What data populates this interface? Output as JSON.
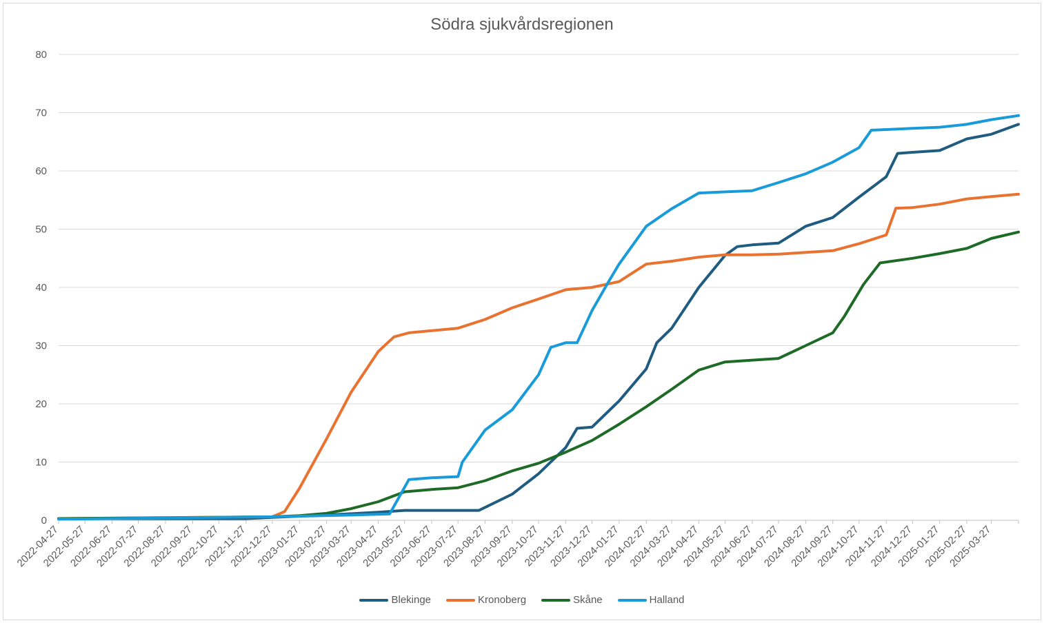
{
  "chart_data": {
    "type": "line",
    "title": "Södra sjukvårdsregionen",
    "xlabel": "",
    "ylabel": "",
    "ylim": [
      0,
      80
    ],
    "yticks": [
      0,
      10,
      20,
      30,
      40,
      50,
      60,
      70,
      80
    ],
    "grid": "horizontal",
    "legend_position": "bottom",
    "x_start": "2022-04-27",
    "x_end": "2025-04-27",
    "x_tick_labels": [
      "2022-04-27",
      "2022-05-27",
      "2022-06-27",
      "2022-07-27",
      "2022-08-27",
      "2022-09-27",
      "2022-10-27",
      "2022-11-27",
      "2022-12-27",
      "2023-01-27",
      "2023-02-27",
      "2023-03-27",
      "2023-04-27",
      "2023-05-27",
      "2023-06-27",
      "2023-07-27",
      "2023-08-27",
      "2023-09-27",
      "2023-10-27",
      "2023-11-27",
      "2023-12-27",
      "2024-01-27",
      "2024-02-27",
      "2024-03-27",
      "2024-04-27",
      "2024-05-27",
      "2024-06-27",
      "2024-07-27",
      "2024-08-27",
      "2024-09-27",
      "2024-10-27",
      "2024-11-27",
      "2024-12-27",
      "2025-01-27",
      "2025-02-27",
      "2025-03-27"
    ],
    "series": [
      {
        "name": "Blekinge",
        "color": "#1f5c80",
        "points": [
          [
            "2022-04-27",
            0.3
          ],
          [
            "2022-11-27",
            0.3
          ],
          [
            "2022-12-27",
            0.5
          ],
          [
            "2023-02-27",
            0.9
          ],
          [
            "2023-04-27",
            1.4
          ],
          [
            "2023-05-27",
            1.7
          ],
          [
            "2023-08-20",
            1.7
          ],
          [
            "2023-09-27",
            4.5
          ],
          [
            "2023-10-27",
            8
          ],
          [
            "2023-11-27",
            12.5
          ],
          [
            "2023-12-10",
            15.8
          ],
          [
            "2023-12-27",
            16
          ],
          [
            "2024-01-27",
            20.5
          ],
          [
            "2024-02-27",
            26
          ],
          [
            "2024-03-10",
            30.5
          ],
          [
            "2024-03-27",
            33
          ],
          [
            "2024-04-27",
            40
          ],
          [
            "2024-05-27",
            45.5
          ],
          [
            "2024-06-10",
            47
          ],
          [
            "2024-06-27",
            47.3
          ],
          [
            "2024-07-27",
            47.6
          ],
          [
            "2024-08-27",
            50.5
          ],
          [
            "2024-09-27",
            52
          ],
          [
            "2024-10-27",
            55.5
          ],
          [
            "2024-11-27",
            59
          ],
          [
            "2024-12-10",
            63
          ],
          [
            "2024-12-27",
            63.2
          ],
          [
            "2025-01-27",
            63.5
          ],
          [
            "2025-02-27",
            65.5
          ],
          [
            "2025-03-27",
            66.3
          ],
          [
            "2025-04-27",
            68
          ]
        ]
      },
      {
        "name": "Kronoberg",
        "color": "#e97231",
        "points": [
          [
            "2022-04-27",
            0.3
          ],
          [
            "2022-12-27",
            0.6
          ],
          [
            "2023-01-10",
            1.5
          ],
          [
            "2023-01-27",
            5.5
          ],
          [
            "2023-02-27",
            14
          ],
          [
            "2023-03-27",
            22
          ],
          [
            "2023-04-27",
            29
          ],
          [
            "2023-05-15",
            31.5
          ],
          [
            "2023-06-01",
            32.2
          ],
          [
            "2023-07-27",
            33
          ],
          [
            "2023-08-27",
            34.5
          ],
          [
            "2023-09-27",
            36.5
          ],
          [
            "2023-10-27",
            38
          ],
          [
            "2023-11-27",
            39.6
          ],
          [
            "2023-12-27",
            40
          ],
          [
            "2024-01-27",
            41
          ],
          [
            "2024-02-27",
            44
          ],
          [
            "2024-03-27",
            44.5
          ],
          [
            "2024-04-27",
            45.2
          ],
          [
            "2024-05-27",
            45.6
          ],
          [
            "2024-06-27",
            45.6
          ],
          [
            "2024-07-27",
            45.7
          ],
          [
            "2024-08-27",
            46
          ],
          [
            "2024-09-27",
            46.3
          ],
          [
            "2024-10-27",
            47.5
          ],
          [
            "2024-11-27",
            49
          ],
          [
            "2024-12-08",
            53.6
          ],
          [
            "2024-12-27",
            53.7
          ],
          [
            "2025-01-27",
            54.3
          ],
          [
            "2025-02-27",
            55.2
          ],
          [
            "2025-03-27",
            55.6
          ],
          [
            "2025-04-27",
            56
          ]
        ]
      },
      {
        "name": "Skåne",
        "color": "#1e6b27",
        "points": [
          [
            "2022-04-27",
            0.3
          ],
          [
            "2022-12-27",
            0.6
          ],
          [
            "2023-01-27",
            0.8
          ],
          [
            "2023-02-27",
            1.2
          ],
          [
            "2023-03-27",
            2
          ],
          [
            "2023-04-27",
            3.2
          ],
          [
            "2023-05-27",
            4.9
          ],
          [
            "2023-06-27",
            5.3
          ],
          [
            "2023-07-27",
            5.6
          ],
          [
            "2023-08-27",
            6.8
          ],
          [
            "2023-09-27",
            8.5
          ],
          [
            "2023-10-27",
            9.8
          ],
          [
            "2023-11-27",
            11.7
          ],
          [
            "2023-12-27",
            13.7
          ],
          [
            "2024-01-27",
            16.5
          ],
          [
            "2024-02-27",
            19.5
          ],
          [
            "2024-03-27",
            22.5
          ],
          [
            "2024-04-27",
            25.8
          ],
          [
            "2024-05-27",
            27.2
          ],
          [
            "2024-06-27",
            27.5
          ],
          [
            "2024-07-27",
            27.8
          ],
          [
            "2024-08-27",
            30
          ],
          [
            "2024-09-27",
            32.2
          ],
          [
            "2024-10-10",
            35
          ],
          [
            "2024-11-01",
            40.5
          ],
          [
            "2024-11-20",
            44.2
          ],
          [
            "2024-12-27",
            45
          ],
          [
            "2025-01-27",
            45.8
          ],
          [
            "2025-02-27",
            46.7
          ],
          [
            "2025-03-27",
            48.4
          ],
          [
            "2025-04-27",
            49.5
          ]
        ]
      },
      {
        "name": "Halland",
        "color": "#199bd9",
        "points": [
          [
            "2022-04-27",
            0.2
          ],
          [
            "2022-12-27",
            0.6
          ],
          [
            "2023-03-27",
            0.9
          ],
          [
            "2023-05-10",
            1.1
          ],
          [
            "2023-06-01",
            7
          ],
          [
            "2023-06-27",
            7.3
          ],
          [
            "2023-07-27",
            7.5
          ],
          [
            "2023-08-01",
            10
          ],
          [
            "2023-08-27",
            15.5
          ],
          [
            "2023-09-27",
            19
          ],
          [
            "2023-10-27",
            25
          ],
          [
            "2023-11-10",
            29.7
          ],
          [
            "2023-11-27",
            30.5
          ],
          [
            "2023-12-10",
            30.5
          ],
          [
            "2023-12-27",
            36
          ],
          [
            "2024-01-15",
            41
          ],
          [
            "2024-01-27",
            44
          ],
          [
            "2024-02-27",
            50.5
          ],
          [
            "2024-03-27",
            53.5
          ],
          [
            "2024-04-27",
            56.2
          ],
          [
            "2024-05-27",
            56.4
          ],
          [
            "2024-06-27",
            56.6
          ],
          [
            "2024-07-27",
            58
          ],
          [
            "2024-08-27",
            59.5
          ],
          [
            "2024-09-27",
            61.5
          ],
          [
            "2024-10-27",
            64
          ],
          [
            "2024-11-10",
            67
          ],
          [
            "2024-11-27",
            67.1
          ],
          [
            "2024-12-27",
            67.3
          ],
          [
            "2025-01-27",
            67.5
          ],
          [
            "2025-02-27",
            68
          ],
          [
            "2025-03-27",
            68.8
          ],
          [
            "2025-04-27",
            69.5
          ]
        ]
      }
    ]
  }
}
